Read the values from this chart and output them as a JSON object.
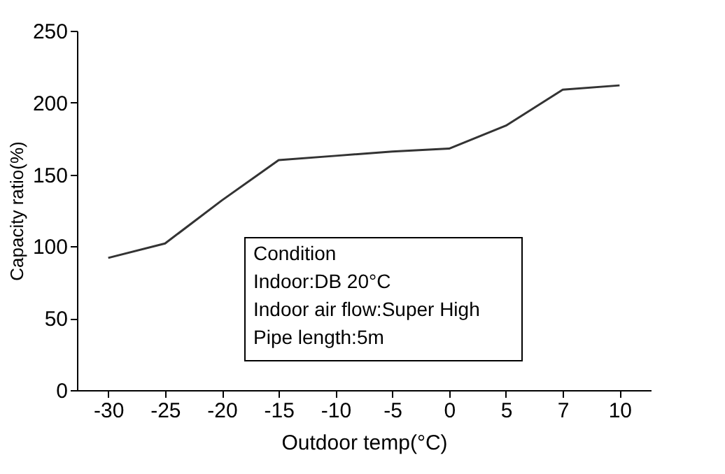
{
  "chart_data": {
    "type": "line",
    "xlabel": "Outdoor temp(°C)",
    "ylabel": "Capacity ratio(%)",
    "categories": [
      "-30",
      "-25",
      "-20",
      "-15",
      "-10",
      "-5",
      "0",
      "5",
      "7",
      "10"
    ],
    "series": [
      {
        "color": "#333333",
        "values": [
          92,
          102,
          132,
          160,
          163,
          166,
          168,
          184,
          209,
          212
        ]
      }
    ],
    "ylim": [
      0,
      250
    ],
    "yticks": [
      0,
      50,
      100,
      150,
      200,
      250
    ],
    "grid": false,
    "marker": "none",
    "line_style": "solid",
    "annotations": [
      "Condition",
      "Indoor:DB 20°C",
      "Indoor air flow:Super High",
      "Pipe length:5m"
    ]
  }
}
